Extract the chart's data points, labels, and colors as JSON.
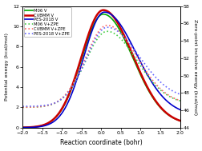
{
  "title": "",
  "xlabel": "Reaction coordinate (bohr)",
  "ylabel_left": "Potential energy (kcal/mol)",
  "ylabel_right": "Zero-point inclusive energy (kcal/mol)",
  "xlim": [
    -2.0,
    2.0
  ],
  "ylim_left": [
    0,
    12
  ],
  "ylim_right": [
    44,
    58
  ],
  "yticks_left": [
    0,
    2,
    4,
    6,
    8,
    10,
    12
  ],
  "yticks_right": [
    44,
    46,
    48,
    50,
    52,
    54,
    56,
    58
  ],
  "xticks": [
    -2.0,
    -1.5,
    -1.0,
    -0.5,
    0.0,
    0.5,
    1.0,
    1.5,
    2.0
  ],
  "colors": {
    "M06_V": "#00aa00",
    "CVBMM_V": "#cc0000",
    "PES2018_V": "#0000cc",
    "M06_ZPE": "#44cc44",
    "CVBMM_ZPE": "#ff6666",
    "PES2018_ZPE": "#6666ff"
  },
  "linewidths": {
    "M06_V": 1.2,
    "CVBMM_V": 1.8,
    "PES2018_V": 1.2,
    "M06_ZPE": 1.2,
    "CVBMM_ZPE": 1.2,
    "PES2018_ZPE": 1.2
  },
  "background_color": "#ffffff",
  "legend_labels": [
    "M06 V",
    "CVBMM V",
    "PES-2018 V",
    "M06 V+ZPE",
    "CVBMM V+ZPE",
    "PES-2018 V+ZPE"
  ]
}
